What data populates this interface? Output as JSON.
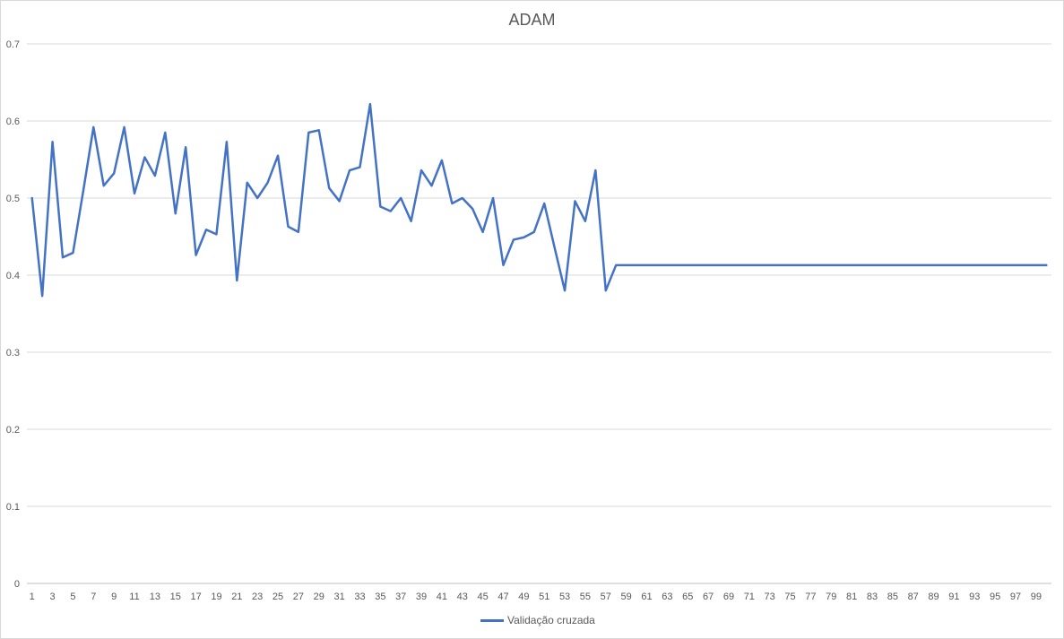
{
  "chart_data": {
    "type": "line",
    "title": "ADAM",
    "xlabel": "",
    "ylabel": "",
    "ylim": [
      0,
      0.7
    ],
    "yticks": [
      "0",
      "0.1",
      "0.2",
      "0.3",
      "0.4",
      "0.5",
      "0.6",
      "0.7"
    ],
    "x": [
      1,
      2,
      3,
      4,
      5,
      6,
      7,
      8,
      9,
      10,
      11,
      12,
      13,
      14,
      15,
      16,
      17,
      18,
      19,
      20,
      21,
      22,
      23,
      24,
      25,
      26,
      27,
      28,
      29,
      30,
      31,
      32,
      33,
      34,
      35,
      36,
      37,
      38,
      39,
      40,
      41,
      42,
      43,
      44,
      45,
      46,
      47,
      48,
      49,
      50,
      51,
      52,
      53,
      54,
      55,
      56,
      57,
      58,
      59,
      60,
      61,
      62,
      63,
      64,
      65,
      66,
      67,
      68,
      69,
      70,
      71,
      72,
      73,
      74,
      75,
      76,
      77,
      78,
      79,
      80,
      81,
      82,
      83,
      84,
      85,
      86,
      87,
      88,
      89,
      90,
      91,
      92,
      93,
      94,
      95,
      96,
      97,
      98,
      99,
      100
    ],
    "xtick_labels": [
      "1",
      "3",
      "5",
      "7",
      "9",
      "11",
      "13",
      "15",
      "17",
      "19",
      "21",
      "23",
      "25",
      "27",
      "29",
      "31",
      "33",
      "35",
      "37",
      "39",
      "41",
      "43",
      "45",
      "47",
      "49",
      "51",
      "53",
      "55",
      "57",
      "59",
      "61",
      "63",
      "65",
      "67",
      "69",
      "71",
      "73",
      "75",
      "77",
      "79",
      "81",
      "83",
      "85",
      "87",
      "89",
      "91",
      "93",
      "95",
      "97",
      "99"
    ],
    "grid": "horizontal",
    "legend_position": "bottom",
    "series": [
      {
        "name": "Validação cruzada",
        "color": "#4472c4",
        "values": [
          0.5,
          0.373,
          0.573,
          0.423,
          0.429,
          0.509,
          0.592,
          0.516,
          0.532,
          0.592,
          0.506,
          0.553,
          0.529,
          0.585,
          0.48,
          0.566,
          0.426,
          0.459,
          0.453,
          0.573,
          0.393,
          0.52,
          0.5,
          0.52,
          0.555,
          0.463,
          0.456,
          0.585,
          0.588,
          0.513,
          0.496,
          0.536,
          0.54,
          0.622,
          0.489,
          0.483,
          0.5,
          0.47,
          0.536,
          0.516,
          0.549,
          0.493,
          0.5,
          0.486,
          0.456,
          0.5,
          0.413,
          0.446,
          0.449,
          0.456,
          0.493,
          0.436,
          0.38,
          0.496,
          0.47,
          0.536,
          0.38,
          0.413,
          0.413,
          0.413,
          0.413,
          0.413,
          0.413,
          0.413,
          0.413,
          0.413,
          0.413,
          0.413,
          0.413,
          0.413,
          0.413,
          0.413,
          0.413,
          0.413,
          0.413,
          0.413,
          0.413,
          0.413,
          0.413,
          0.413,
          0.413,
          0.413,
          0.413,
          0.413,
          0.413,
          0.413,
          0.413,
          0.413,
          0.413,
          0.413,
          0.413,
          0.413,
          0.413,
          0.413,
          0.413,
          0.413,
          0.413,
          0.413,
          0.413,
          0.413
        ]
      }
    ]
  }
}
